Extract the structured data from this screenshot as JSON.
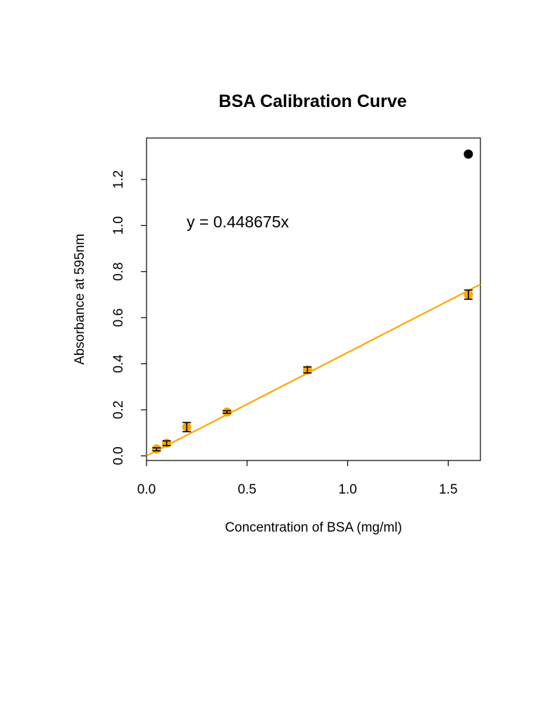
{
  "chart_data": {
    "type": "scatter",
    "title": "BSA Calibration Curve",
    "xlabel": "Concentration of BSA (mg/ml)",
    "ylabel": "Absorbance at 595nm",
    "xlim": [
      0,
      1.66
    ],
    "ylim": [
      -0.02,
      1.38
    ],
    "x_ticks": [
      0.0,
      0.5,
      1.0,
      1.5
    ],
    "x_tick_labels": [
      "0.0",
      "0.5",
      "1.0",
      "1.5"
    ],
    "y_ticks": [
      0.0,
      0.2,
      0.4,
      0.6,
      0.8,
      1.0,
      1.2
    ],
    "y_tick_labels": [
      "0.0",
      "0.2",
      "0.4",
      "0.6",
      "0.8",
      "1.0",
      "1.2"
    ],
    "grid": false,
    "annotation": "y = 0.448675x",
    "points": [
      {
        "x": 0.05,
        "y": 0.03,
        "err_low": 0.022,
        "err_high": 0.035
      },
      {
        "x": 0.1,
        "y": 0.055,
        "err_low": 0.045,
        "err_high": 0.065
      },
      {
        "x": 0.2,
        "y": 0.125,
        "err_low": 0.105,
        "err_high": 0.145
      },
      {
        "x": 0.4,
        "y": 0.19,
        "err_low": 0.185,
        "err_high": 0.196
      },
      {
        "x": 0.8,
        "y": 0.373,
        "err_low": 0.36,
        "err_high": 0.386
      },
      {
        "x": 1.6,
        "y": 0.7,
        "err_low": 0.68,
        "err_high": 0.72
      }
    ],
    "outlier": {
      "x": 1.6,
      "y": 1.31
    },
    "fit_line": {
      "slope": 0.448675,
      "intercept": 0
    },
    "colors": {
      "points": "#FFA500",
      "fit_line": "#FFA500",
      "error_bars": "#000000",
      "outlier": "#000000"
    }
  }
}
